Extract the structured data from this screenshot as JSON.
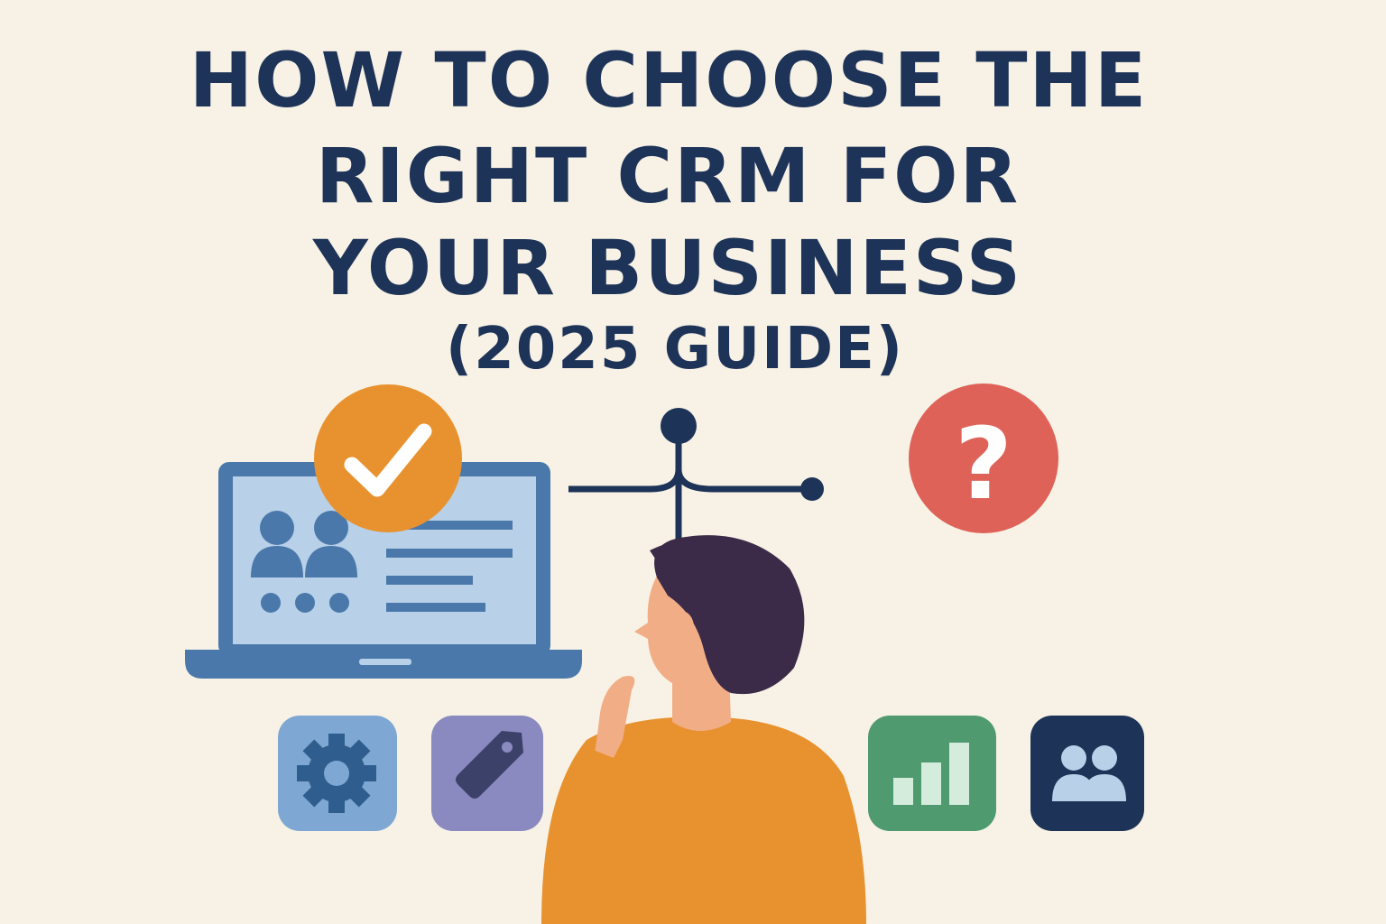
{
  "title": {
    "line1": "HOW TO CHOOSE THE",
    "line2": "RIGHT CRM FOR",
    "line3": "YOUR BUSINESS",
    "line4": "(2025 GUIDE)"
  },
  "icons": {
    "check": "checkmark-icon",
    "question": "question-mark-icon",
    "question_glyph": "?",
    "tiles": [
      "gear-icon",
      "tag-icon",
      "bar-chart-icon",
      "users-icon"
    ]
  },
  "colors": {
    "background": "#f8f2e6",
    "title": "#1d3357",
    "laptop": "#4a78aa",
    "screen": "#b8d0e8",
    "check_badge": "#e8922f",
    "question_badge": "#de6258",
    "gear_tile": "#7ea7d3",
    "tag_tile": "#8a8ac0",
    "chart_tile": "#4f9a6f",
    "users_tile": "#1d3357",
    "shirt": "#e8922f",
    "hair": "#3b2a48",
    "skin": "#f1ae86"
  }
}
